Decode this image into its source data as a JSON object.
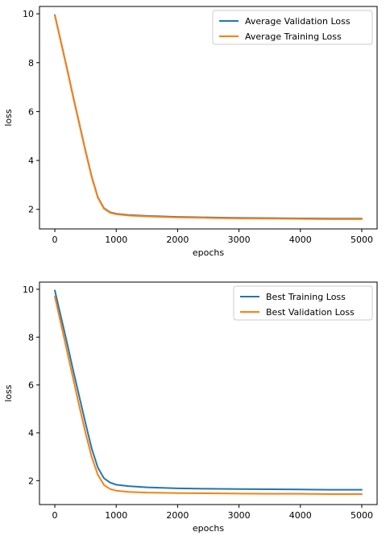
{
  "chart_data": [
    {
      "type": "line",
      "xlabel": "epochs",
      "ylabel": "loss",
      "xlim": [
        -250,
        5250
      ],
      "ylim": [
        1.2,
        10.3
      ],
      "xticks": [
        0,
        1000,
        2000,
        3000,
        4000,
        5000
      ],
      "yticks": [
        2,
        4,
        6,
        8,
        10
      ],
      "legend": "top-right",
      "grid": false,
      "series": [
        {
          "name": "Average Validation Loss",
          "color": "#1f77b4",
          "x": [
            0,
            100,
            200,
            300,
            400,
            500,
            600,
            700,
            800,
            900,
            1000,
            1200,
            1500,
            2000,
            2500,
            3000,
            3500,
            4000,
            4500,
            5000
          ],
          "y": [
            9.95,
            8.85,
            7.75,
            6.6,
            5.5,
            4.4,
            3.35,
            2.5,
            2.05,
            1.88,
            1.82,
            1.77,
            1.73,
            1.69,
            1.67,
            1.65,
            1.64,
            1.63,
            1.62,
            1.62
          ]
        },
        {
          "name": "Average Training Loss",
          "color": "#ff7f0e",
          "x": [
            0,
            100,
            200,
            300,
            400,
            500,
            600,
            700,
            800,
            900,
            1000,
            1200,
            1500,
            2000,
            2500,
            3000,
            3500,
            4000,
            4500,
            5000
          ],
          "y": [
            9.93,
            8.83,
            7.72,
            6.57,
            5.47,
            4.37,
            3.32,
            2.48,
            2.03,
            1.86,
            1.8,
            1.75,
            1.71,
            1.67,
            1.65,
            1.63,
            1.62,
            1.61,
            1.6,
            1.6
          ]
        }
      ]
    },
    {
      "type": "line",
      "xlabel": "epochs",
      "ylabel": "loss",
      "xlim": [
        -250,
        5250
      ],
      "ylim": [
        1.0,
        10.3
      ],
      "xticks": [
        0,
        1000,
        2000,
        3000,
        4000,
        5000
      ],
      "yticks": [
        2,
        4,
        6,
        8,
        10
      ],
      "legend": "top-right",
      "grid": false,
      "series": [
        {
          "name": "Best Training Loss",
          "color": "#1f77b4",
          "x": [
            0,
            100,
            200,
            300,
            400,
            500,
            600,
            700,
            800,
            900,
            1000,
            1200,
            1500,
            2000,
            2500,
            3000,
            3500,
            4000,
            4500,
            5000
          ],
          "y": [
            9.95,
            8.85,
            7.75,
            6.6,
            5.5,
            4.4,
            3.35,
            2.55,
            2.1,
            1.92,
            1.83,
            1.77,
            1.72,
            1.68,
            1.66,
            1.65,
            1.64,
            1.63,
            1.62,
            1.62
          ]
        },
        {
          "name": "Best Validation Loss",
          "color": "#ff7f0e",
          "x": [
            0,
            100,
            200,
            300,
            400,
            500,
            600,
            700,
            800,
            900,
            1000,
            1200,
            1500,
            2000,
            2500,
            3000,
            3500,
            4000,
            4500,
            5000
          ],
          "y": [
            9.7,
            8.55,
            7.4,
            6.25,
            5.1,
            4.0,
            3.0,
            2.25,
            1.82,
            1.65,
            1.58,
            1.53,
            1.5,
            1.48,
            1.47,
            1.46,
            1.45,
            1.45,
            1.44,
            1.44
          ]
        }
      ]
    }
  ]
}
